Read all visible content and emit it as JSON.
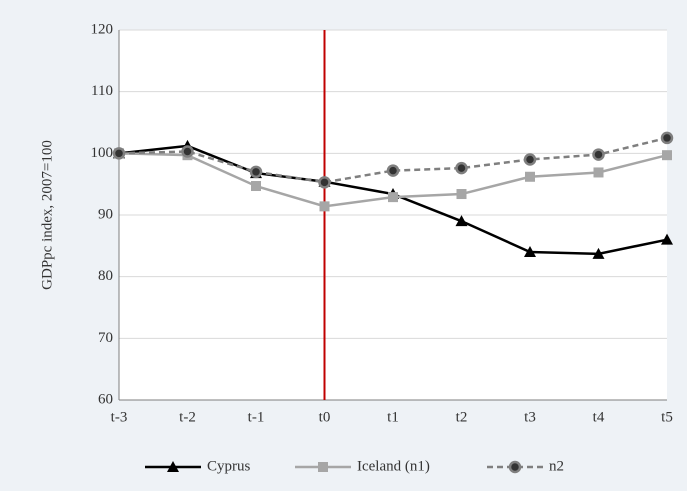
{
  "chart_data": {
    "type": "line",
    "y_label": "GDPpc index, 2007=100",
    "categories": [
      "t-3",
      "t-2",
      "t-1",
      "t0",
      "t1",
      "t2",
      "t3",
      "t4",
      "t5"
    ],
    "series": [
      {
        "name": "Cyprus",
        "color": "#000000",
        "marker": "triangle",
        "dashed": false,
        "values": [
          100,
          101.2,
          96.8,
          95.4,
          93.4,
          89,
          84,
          83.7,
          86
        ]
      },
      {
        "name": "Iceland (n1)",
        "color": "#a6a6a6",
        "marker": "square",
        "dashed": false,
        "values": [
          100,
          99.7,
          94.7,
          91.4,
          92.9,
          93.4,
          96.2,
          96.9,
          99.7
        ]
      },
      {
        "name": "n2",
        "color": "#7f7f7f",
        "marker": "circle",
        "dashed": true,
        "values": [
          100,
          100.3,
          97,
          95.3,
          97.2,
          97.6,
          99,
          99.8,
          102.5
        ]
      }
    ],
    "vline": {
      "category": "t0",
      "color": "#c00000"
    },
    "ylim": [
      60,
      120
    ],
    "yticks": [
      60,
      70,
      80,
      90,
      100,
      110,
      120
    ],
    "grid": true,
    "legend": "bottom"
  }
}
